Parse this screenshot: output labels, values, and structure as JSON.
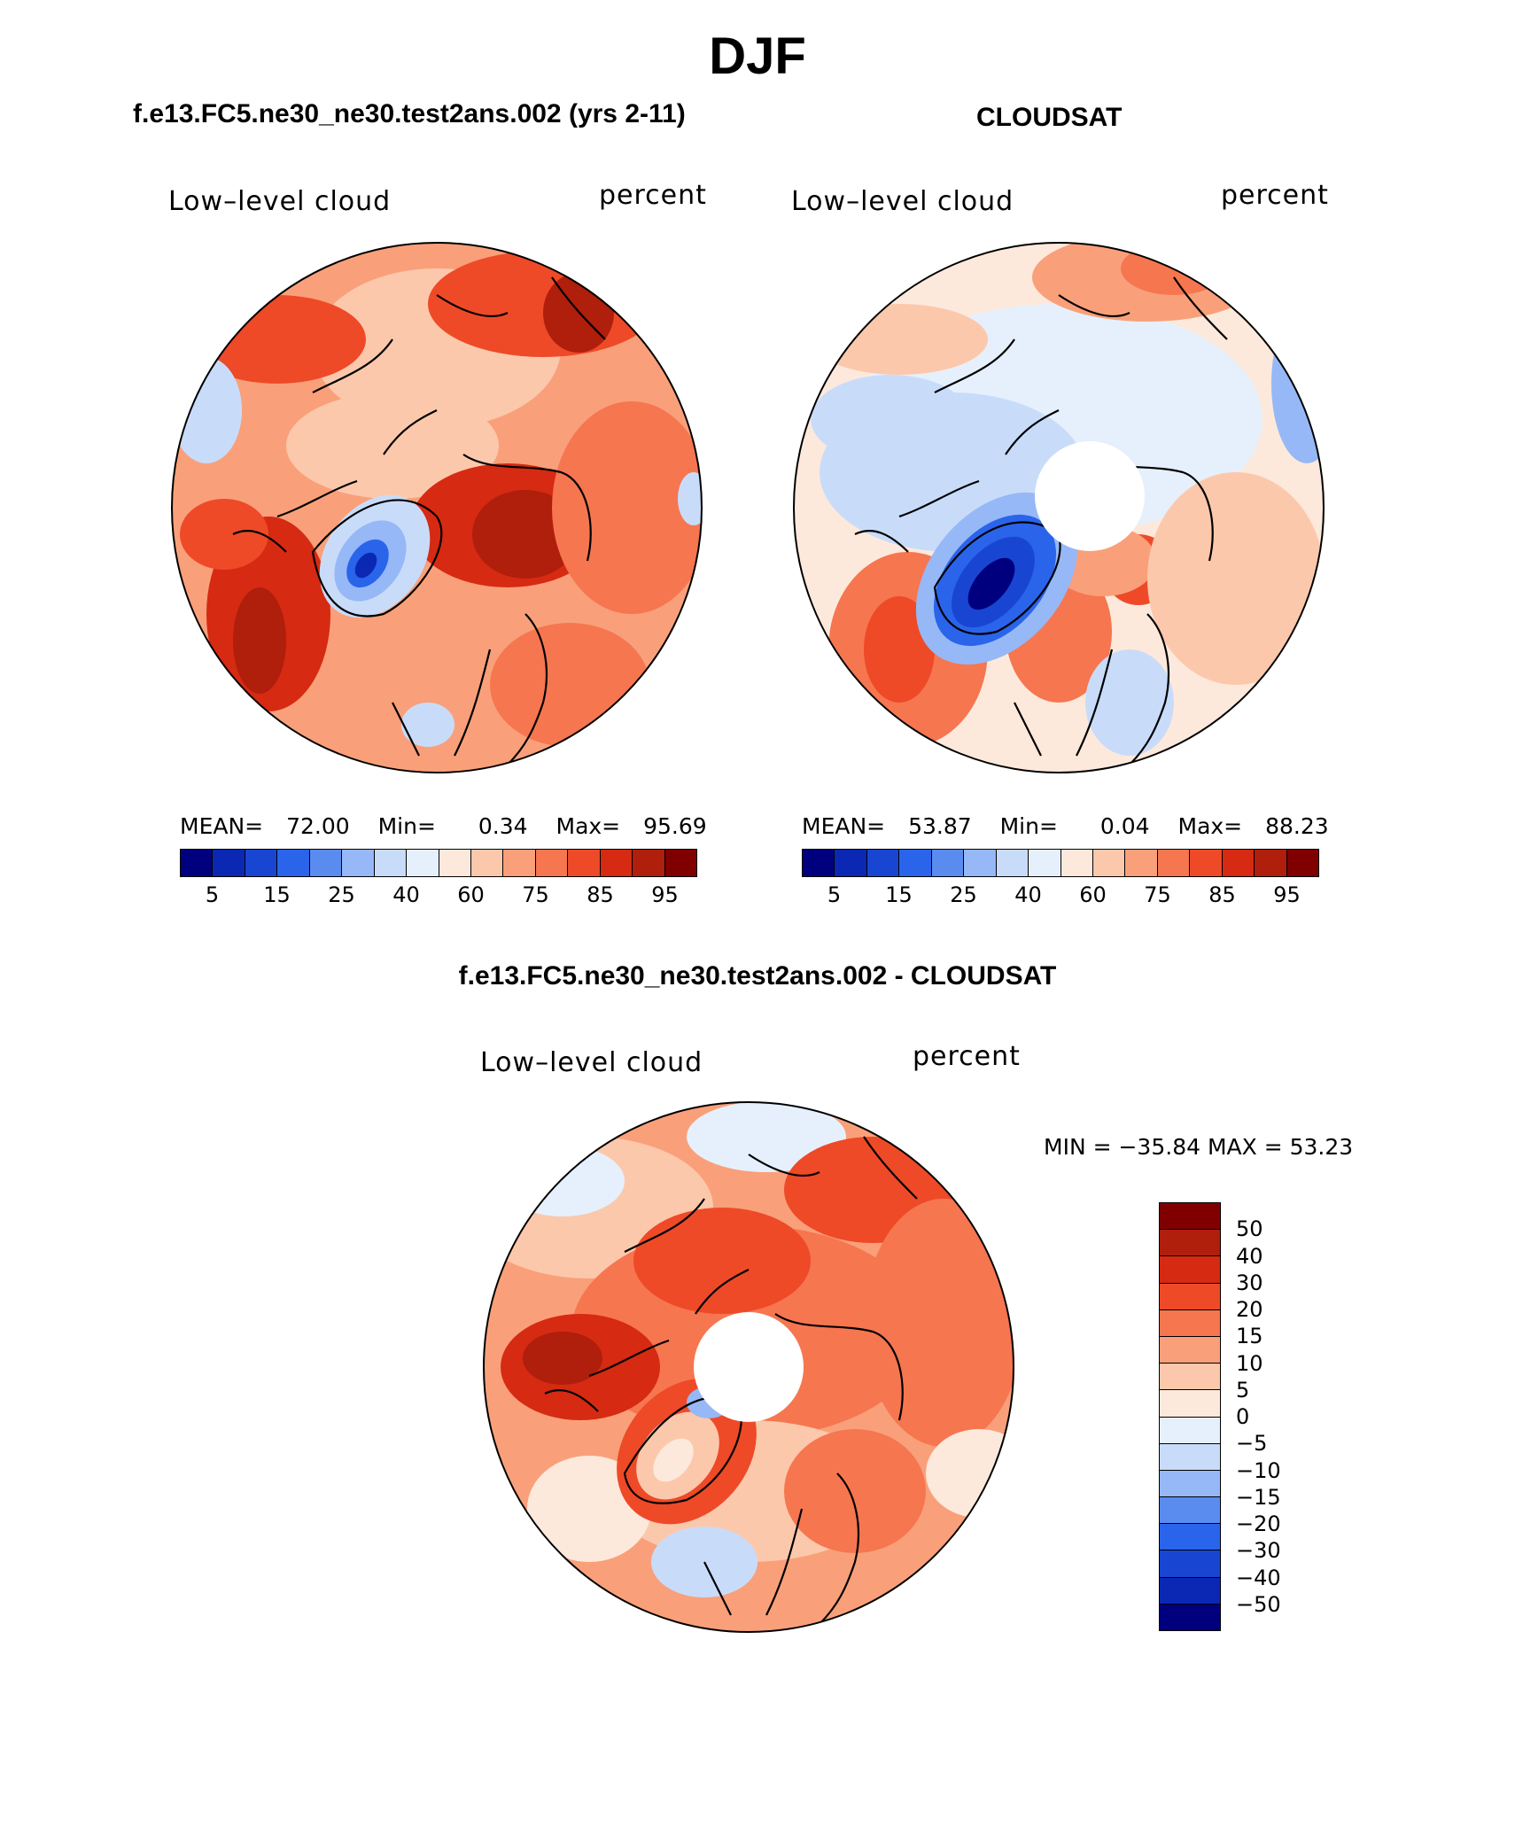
{
  "main_title": "DJF",
  "panels": [
    {
      "title": "f.e13.FC5.ne30_ne30.test2ans.002 (yrs 2-11)",
      "variable": "Low–level cloud",
      "units": "percent",
      "stats": {
        "mean_label": "MEAN=",
        "mean": "72.00",
        "min_label": "Min=",
        "min": "0.34",
        "max_label": "Max=",
        "max": "95.69"
      },
      "colorbar_ticks": [
        "5",
        "15",
        "25",
        "40",
        "60",
        "75",
        "85",
        "95"
      ]
    },
    {
      "title": "CLOUDSAT",
      "variable": "Low–level cloud",
      "units": "percent",
      "stats": {
        "mean_label": "MEAN=",
        "mean": "53.87",
        "min_label": "Min=",
        "min": "0.04",
        "max_label": "Max=",
        "max": "88.23"
      },
      "colorbar_ticks": [
        "5",
        "15",
        "25",
        "40",
        "60",
        "75",
        "85",
        "95"
      ]
    }
  ],
  "diff_panel": {
    "title": "f.e13.FC5.ne30_ne30.test2ans.002 - CLOUDSAT",
    "variable": "Low–level cloud",
    "units": "percent",
    "minmax": "MIN = −35.84 MAX =   53.23",
    "colorbar_labels": [
      "50",
      "40",
      "30",
      "20",
      "15",
      "10",
      "5",
      "0",
      "−5",
      "−10",
      "−15",
      "−20",
      "−30",
      "−40",
      "−50"
    ]
  },
  "colors": {
    "scale_16": [
      "#00007f",
      "#0a28b4",
      "#1846d2",
      "#2a64ea",
      "#5a8cf0",
      "#96b8f6",
      "#c8dcfa",
      "#e6f0fc",
      "#fde9dc",
      "#fcc8ac",
      "#f9a07a",
      "#f67650",
      "#ee4a28",
      "#d62a12",
      "#b01e0c",
      "#800000"
    ],
    "ocean_base": "#fbd9c6",
    "coast": "#000000"
  }
}
